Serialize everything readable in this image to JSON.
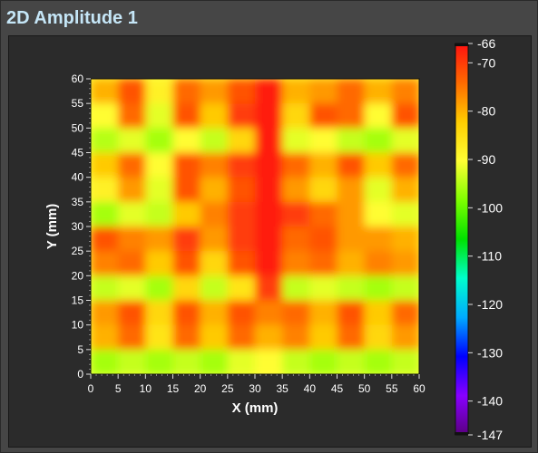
{
  "panel": {
    "title": "2D Amplitude 1"
  },
  "chart_data": {
    "type": "heatmap",
    "xlabel": "X (mm)",
    "ylabel": "Y (mm)",
    "xlim": [
      0,
      60
    ],
    "ylim": [
      0,
      60
    ],
    "x_ticks": [
      0,
      5,
      10,
      15,
      20,
      25,
      30,
      35,
      40,
      45,
      50,
      55,
      60
    ],
    "y_ticks": [
      0,
      5,
      10,
      15,
      20,
      25,
      30,
      35,
      40,
      45,
      50,
      55,
      60
    ],
    "colorbar": {
      "range": [
        -147,
        -66
      ],
      "tick_values": [
        -66,
        -70,
        -80,
        -90,
        -100,
        -110,
        -120,
        -130,
        -140,
        -147
      ],
      "tick_labels": [
        "-66",
        "-70",
        "-80",
        "-90",
        "-100",
        "-110",
        "-120",
        "-130",
        "-140",
        "-147"
      ],
      "colors": [
        "#ff1010",
        "#ff6a00",
        "#ffcc00",
        "#ffff33",
        "#7fff00",
        "#00e000",
        "#00ffcc",
        "#00aaff",
        "#0000ff",
        "#8800ff",
        "#5a0080"
      ]
    },
    "background_color": "#ffff44",
    "cells": [
      {
        "x": 2.5,
        "y": 57.5,
        "v": -80
      },
      {
        "x": 7.5,
        "y": 57.5,
        "v": -72
      },
      {
        "x": 12.5,
        "y": 57.5,
        "v": -88
      },
      {
        "x": 17.5,
        "y": 57.5,
        "v": -74
      },
      {
        "x": 22.5,
        "y": 57.5,
        "v": -78
      },
      {
        "x": 27.5,
        "y": 57.5,
        "v": -72
      },
      {
        "x": 32.5,
        "y": 57.5,
        "v": -67
      },
      {
        "x": 37.5,
        "y": 57.5,
        "v": -80
      },
      {
        "x": 42.5,
        "y": 57.5,
        "v": -78
      },
      {
        "x": 47.5,
        "y": 57.5,
        "v": -74
      },
      {
        "x": 52.5,
        "y": 57.5,
        "v": -80
      },
      {
        "x": 57.5,
        "y": 57.5,
        "v": -76
      },
      {
        "x": 2.5,
        "y": 52.5,
        "v": -90
      },
      {
        "x": 7.5,
        "y": 52.5,
        "v": -74
      },
      {
        "x": 12.5,
        "y": 52.5,
        "v": -92
      },
      {
        "x": 17.5,
        "y": 52.5,
        "v": -72
      },
      {
        "x": 22.5,
        "y": 52.5,
        "v": -82
      },
      {
        "x": 27.5,
        "y": 52.5,
        "v": -70
      },
      {
        "x": 32.5,
        "y": 52.5,
        "v": -67
      },
      {
        "x": 37.5,
        "y": 52.5,
        "v": -84
      },
      {
        "x": 42.5,
        "y": 52.5,
        "v": -72
      },
      {
        "x": 47.5,
        "y": 52.5,
        "v": -74
      },
      {
        "x": 52.5,
        "y": 52.5,
        "v": -90
      },
      {
        "x": 57.5,
        "y": 52.5,
        "v": -72
      },
      {
        "x": 2.5,
        "y": 47.5,
        "v": -95
      },
      {
        "x": 7.5,
        "y": 47.5,
        "v": -92
      },
      {
        "x": 12.5,
        "y": 47.5,
        "v": -96
      },
      {
        "x": 17.5,
        "y": 47.5,
        "v": -90
      },
      {
        "x": 22.5,
        "y": 47.5,
        "v": -94
      },
      {
        "x": 27.5,
        "y": 47.5,
        "v": -84
      },
      {
        "x": 32.5,
        "y": 47.5,
        "v": -67
      },
      {
        "x": 37.5,
        "y": 47.5,
        "v": -92
      },
      {
        "x": 42.5,
        "y": 47.5,
        "v": -90
      },
      {
        "x": 47.5,
        "y": 47.5,
        "v": -94
      },
      {
        "x": 52.5,
        "y": 47.5,
        "v": -96
      },
      {
        "x": 57.5,
        "y": 47.5,
        "v": -92
      },
      {
        "x": 2.5,
        "y": 42.5,
        "v": -82
      },
      {
        "x": 7.5,
        "y": 42.5,
        "v": -74
      },
      {
        "x": 12.5,
        "y": 42.5,
        "v": -90
      },
      {
        "x": 17.5,
        "y": 42.5,
        "v": -72
      },
      {
        "x": 22.5,
        "y": 42.5,
        "v": -76
      },
      {
        "x": 27.5,
        "y": 42.5,
        "v": -70
      },
      {
        "x": 32.5,
        "y": 42.5,
        "v": -67
      },
      {
        "x": 37.5,
        "y": 42.5,
        "v": -74
      },
      {
        "x": 42.5,
        "y": 42.5,
        "v": -80
      },
      {
        "x": 47.5,
        "y": 42.5,
        "v": -72
      },
      {
        "x": 52.5,
        "y": 42.5,
        "v": -82
      },
      {
        "x": 57.5,
        "y": 42.5,
        "v": -74
      },
      {
        "x": 2.5,
        "y": 37.5,
        "v": -88
      },
      {
        "x": 7.5,
        "y": 37.5,
        "v": -78
      },
      {
        "x": 12.5,
        "y": 37.5,
        "v": -92
      },
      {
        "x": 17.5,
        "y": 37.5,
        "v": -72
      },
      {
        "x": 22.5,
        "y": 37.5,
        "v": -80
      },
      {
        "x": 27.5,
        "y": 37.5,
        "v": -72
      },
      {
        "x": 32.5,
        "y": 37.5,
        "v": -67
      },
      {
        "x": 37.5,
        "y": 37.5,
        "v": -78
      },
      {
        "x": 42.5,
        "y": 37.5,
        "v": -84
      },
      {
        "x": 47.5,
        "y": 37.5,
        "v": -78
      },
      {
        "x": 52.5,
        "y": 37.5,
        "v": -92
      },
      {
        "x": 57.5,
        "y": 37.5,
        "v": -80
      },
      {
        "x": 2.5,
        "y": 32.5,
        "v": -96
      },
      {
        "x": 7.5,
        "y": 32.5,
        "v": -92
      },
      {
        "x": 12.5,
        "y": 32.5,
        "v": -94
      },
      {
        "x": 17.5,
        "y": 32.5,
        "v": -82
      },
      {
        "x": 22.5,
        "y": 32.5,
        "v": -76
      },
      {
        "x": 27.5,
        "y": 32.5,
        "v": -70
      },
      {
        "x": 32.5,
        "y": 32.5,
        "v": -67
      },
      {
        "x": 37.5,
        "y": 32.5,
        "v": -70
      },
      {
        "x": 42.5,
        "y": 32.5,
        "v": -74
      },
      {
        "x": 47.5,
        "y": 32.5,
        "v": -78
      },
      {
        "x": 52.5,
        "y": 32.5,
        "v": -90
      },
      {
        "x": 57.5,
        "y": 32.5,
        "v": -92
      },
      {
        "x": 2.5,
        "y": 27.5,
        "v": -72
      },
      {
        "x": 7.5,
        "y": 27.5,
        "v": -76
      },
      {
        "x": 12.5,
        "y": 27.5,
        "v": -78
      },
      {
        "x": 17.5,
        "y": 27.5,
        "v": -70
      },
      {
        "x": 22.5,
        "y": 27.5,
        "v": -78
      },
      {
        "x": 27.5,
        "y": 27.5,
        "v": -70
      },
      {
        "x": 32.5,
        "y": 27.5,
        "v": -67
      },
      {
        "x": 37.5,
        "y": 27.5,
        "v": -74
      },
      {
        "x": 42.5,
        "y": 27.5,
        "v": -72
      },
      {
        "x": 47.5,
        "y": 27.5,
        "v": -78
      },
      {
        "x": 52.5,
        "y": 27.5,
        "v": -78
      },
      {
        "x": 57.5,
        "y": 27.5,
        "v": -80
      },
      {
        "x": 2.5,
        "y": 22.5,
        "v": -76
      },
      {
        "x": 7.5,
        "y": 22.5,
        "v": -74
      },
      {
        "x": 12.5,
        "y": 22.5,
        "v": -82
      },
      {
        "x": 17.5,
        "y": 22.5,
        "v": -72
      },
      {
        "x": 22.5,
        "y": 22.5,
        "v": -84
      },
      {
        "x": 27.5,
        "y": 22.5,
        "v": -72
      },
      {
        "x": 32.5,
        "y": 22.5,
        "v": -67
      },
      {
        "x": 37.5,
        "y": 22.5,
        "v": -76
      },
      {
        "x": 42.5,
        "y": 22.5,
        "v": -74
      },
      {
        "x": 47.5,
        "y": 22.5,
        "v": -80
      },
      {
        "x": 52.5,
        "y": 22.5,
        "v": -76
      },
      {
        "x": 57.5,
        "y": 22.5,
        "v": -78
      },
      {
        "x": 2.5,
        "y": 17.5,
        "v": -94
      },
      {
        "x": 7.5,
        "y": 17.5,
        "v": -92
      },
      {
        "x": 12.5,
        "y": 17.5,
        "v": -96
      },
      {
        "x": 17.5,
        "y": 17.5,
        "v": -84
      },
      {
        "x": 22.5,
        "y": 17.5,
        "v": -94
      },
      {
        "x": 27.5,
        "y": 17.5,
        "v": -86
      },
      {
        "x": 32.5,
        "y": 17.5,
        "v": -70
      },
      {
        "x": 37.5,
        "y": 17.5,
        "v": -94
      },
      {
        "x": 42.5,
        "y": 17.5,
        "v": -92
      },
      {
        "x": 47.5,
        "y": 17.5,
        "v": -94
      },
      {
        "x": 52.5,
        "y": 17.5,
        "v": -96
      },
      {
        "x": 57.5,
        "y": 17.5,
        "v": -94
      },
      {
        "x": 2.5,
        "y": 12.5,
        "v": -78
      },
      {
        "x": 7.5,
        "y": 12.5,
        "v": -72
      },
      {
        "x": 12.5,
        "y": 12.5,
        "v": -84
      },
      {
        "x": 17.5,
        "y": 12.5,
        "v": -72
      },
      {
        "x": 22.5,
        "y": 12.5,
        "v": -80
      },
      {
        "x": 27.5,
        "y": 12.5,
        "v": -72
      },
      {
        "x": 32.5,
        "y": 12.5,
        "v": -76
      },
      {
        "x": 37.5,
        "y": 12.5,
        "v": -74
      },
      {
        "x": 42.5,
        "y": 12.5,
        "v": -80
      },
      {
        "x": 47.5,
        "y": 12.5,
        "v": -72
      },
      {
        "x": 52.5,
        "y": 12.5,
        "v": -82
      },
      {
        "x": 57.5,
        "y": 12.5,
        "v": -74
      },
      {
        "x": 2.5,
        "y": 7.5,
        "v": -80
      },
      {
        "x": 7.5,
        "y": 7.5,
        "v": -74
      },
      {
        "x": 12.5,
        "y": 7.5,
        "v": -86
      },
      {
        "x": 17.5,
        "y": 7.5,
        "v": -74
      },
      {
        "x": 22.5,
        "y": 7.5,
        "v": -82
      },
      {
        "x": 27.5,
        "y": 7.5,
        "v": -74
      },
      {
        "x": 32.5,
        "y": 7.5,
        "v": -80
      },
      {
        "x": 37.5,
        "y": 7.5,
        "v": -76
      },
      {
        "x": 42.5,
        "y": 7.5,
        "v": -82
      },
      {
        "x": 47.5,
        "y": 7.5,
        "v": -74
      },
      {
        "x": 52.5,
        "y": 7.5,
        "v": -84
      },
      {
        "x": 57.5,
        "y": 7.5,
        "v": -78
      },
      {
        "x": 2.5,
        "y": 2.5,
        "v": -96
      },
      {
        "x": 7.5,
        "y": 2.5,
        "v": -94
      },
      {
        "x": 12.5,
        "y": 2.5,
        "v": -96
      },
      {
        "x": 17.5,
        "y": 2.5,
        "v": -94
      },
      {
        "x": 22.5,
        "y": 2.5,
        "v": -96
      },
      {
        "x": 27.5,
        "y": 2.5,
        "v": -92
      },
      {
        "x": 32.5,
        "y": 2.5,
        "v": -90
      },
      {
        "x": 37.5,
        "y": 2.5,
        "v": -94
      },
      {
        "x": 42.5,
        "y": 2.5,
        "v": -96
      },
      {
        "x": 47.5,
        "y": 2.5,
        "v": -94
      },
      {
        "x": 52.5,
        "y": 2.5,
        "v": -96
      },
      {
        "x": 57.5,
        "y": 2.5,
        "v": -94
      }
    ]
  }
}
